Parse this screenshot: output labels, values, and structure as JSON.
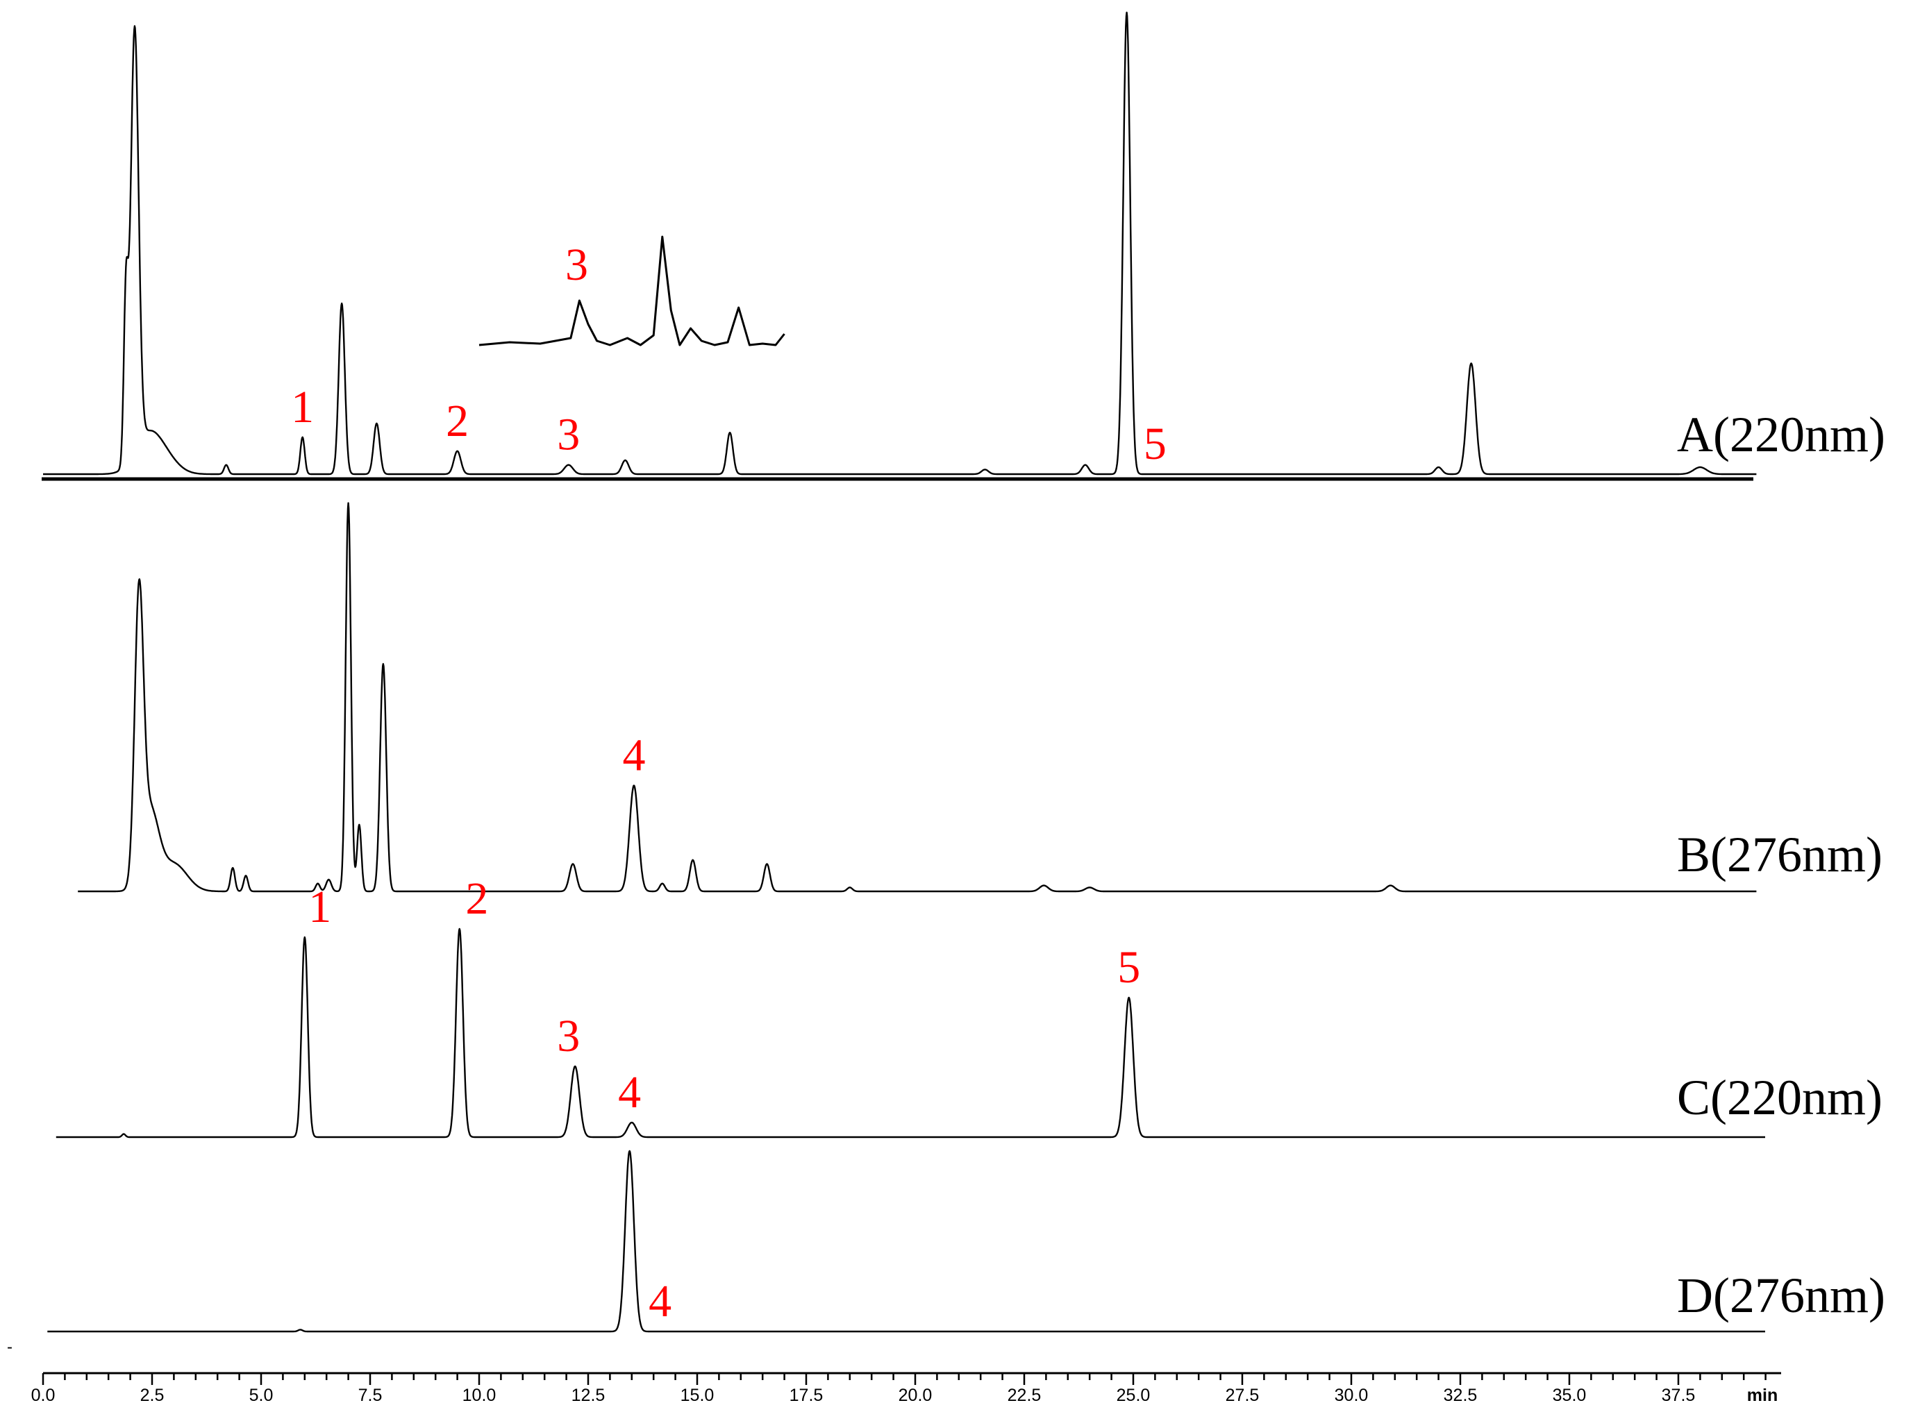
{
  "chart_data": {
    "type": "line",
    "title": "",
    "xlabel": "",
    "ylabel": "",
    "x_unit": "min",
    "xlim": [
      0,
      39.5
    ],
    "x_ticks": [
      "0.0",
      "2.5",
      "5.0",
      "7.5",
      "10.0",
      "12.5",
      "15.0",
      "17.5",
      "20.0",
      "22.5",
      "25.0",
      "27.5",
      "30.0",
      "32.5",
      "35.0",
      "37.5"
    ],
    "peak_label_color": "#ff0000",
    "trace_color": "#000000",
    "grid": false,
    "series": [
      {
        "name": "A(220nm)",
        "t_start": 0,
        "t_end": 39.3,
        "peaks": [
          {
            "t": 1.9,
            "h": 0.35,
            "w": 0.05
          },
          {
            "t": 2.1,
            "h": 0.92,
            "w": 0.09
          },
          {
            "t": 2.4,
            "h": 0.08,
            "w": 0.3
          },
          {
            "t": 2.8,
            "h": 0.03,
            "w": 0.3
          },
          {
            "t": 4.2,
            "h": 0.02,
            "w": 0.05
          },
          {
            "t": 5.95,
            "h": 0.08,
            "w": 0.05
          },
          {
            "t": 6.85,
            "h": 0.37,
            "w": 0.07
          },
          {
            "t": 7.65,
            "h": 0.11,
            "w": 0.07
          },
          {
            "t": 9.5,
            "h": 0.05,
            "w": 0.08
          },
          {
            "t": 12.05,
            "h": 0.02,
            "w": 0.1
          },
          {
            "t": 13.35,
            "h": 0.03,
            "w": 0.08
          },
          {
            "t": 15.75,
            "h": 0.09,
            "w": 0.07
          },
          {
            "t": 21.6,
            "h": 0.01,
            "w": 0.08
          },
          {
            "t": 23.9,
            "h": 0.02,
            "w": 0.08
          },
          {
            "t": 24.85,
            "h": 1.0,
            "w": 0.08
          },
          {
            "t": 32.0,
            "h": 0.015,
            "w": 0.08
          },
          {
            "t": 32.75,
            "h": 0.24,
            "w": 0.1
          },
          {
            "t": 38.0,
            "h": 0.015,
            "w": 0.15
          }
        ],
        "peak_labels": [
          {
            "text": "1",
            "t": 5.95
          },
          {
            "text": "2",
            "t": 9.5
          },
          {
            "text": "3",
            "t": 12.05
          },
          {
            "text": "5",
            "t": 25.5
          }
        ],
        "inset": {
          "x": [
            10.0,
            10.7,
            11.4,
            12.1,
            12.3,
            12.5,
            12.7,
            13.0,
            13.4,
            13.7,
            14.0,
            14.2,
            14.4,
            14.6,
            14.85,
            15.1,
            15.4,
            15.7,
            15.95,
            16.2,
            16.5,
            16.8,
            17.0
          ],
          "y": [
            0.0,
            0.02,
            0.01,
            0.05,
            0.32,
            0.15,
            0.03,
            0.0,
            0.05,
            0.0,
            0.07,
            0.78,
            0.25,
            0.0,
            0.12,
            0.03,
            0.0,
            0.02,
            0.27,
            0.0,
            0.01,
            0.0,
            0.08
          ],
          "label": "3"
        }
      },
      {
        "name": "B(276nm)",
        "t_start": 0.8,
        "t_end": 39.3,
        "peaks": [
          {
            "t": 2.2,
            "h": 0.7,
            "w": 0.1
          },
          {
            "t": 2.45,
            "h": 0.2,
            "w": 0.2
          },
          {
            "t": 3.0,
            "h": 0.07,
            "w": 0.3
          },
          {
            "t": 4.35,
            "h": 0.06,
            "w": 0.05
          },
          {
            "t": 4.65,
            "h": 0.04,
            "w": 0.05
          },
          {
            "t": 6.3,
            "h": 0.02,
            "w": 0.05
          },
          {
            "t": 6.55,
            "h": 0.03,
            "w": 0.06
          },
          {
            "t": 7.0,
            "h": 0.99,
            "w": 0.06
          },
          {
            "t": 7.25,
            "h": 0.17,
            "w": 0.05
          },
          {
            "t": 7.8,
            "h": 0.58,
            "w": 0.07
          },
          {
            "t": 12.15,
            "h": 0.07,
            "w": 0.08
          },
          {
            "t": 13.55,
            "h": 0.27,
            "w": 0.1
          },
          {
            "t": 14.2,
            "h": 0.02,
            "w": 0.06
          },
          {
            "t": 14.9,
            "h": 0.08,
            "w": 0.07
          },
          {
            "t": 16.6,
            "h": 0.07,
            "w": 0.07
          },
          {
            "t": 18.5,
            "h": 0.01,
            "w": 0.06
          },
          {
            "t": 22.95,
            "h": 0.015,
            "w": 0.1
          },
          {
            "t": 24.0,
            "h": 0.01,
            "w": 0.1
          },
          {
            "t": 30.9,
            "h": 0.015,
            "w": 0.1
          }
        ],
        "peak_labels": [
          {
            "text": "4",
            "t": 13.55
          }
        ]
      },
      {
        "name": "C(220nm)",
        "t_start": 0.3,
        "t_end": 39.5,
        "peaks": [
          {
            "t": 1.85,
            "h": 0.015,
            "w": 0.04
          },
          {
            "t": 6.0,
            "h": 0.96,
            "w": 0.07
          },
          {
            "t": 9.55,
            "h": 1.0,
            "w": 0.08
          },
          {
            "t": 12.2,
            "h": 0.34,
            "w": 0.1
          },
          {
            "t": 13.5,
            "h": 0.07,
            "w": 0.1
          },
          {
            "t": 24.9,
            "h": 0.67,
            "w": 0.1
          }
        ],
        "peak_labels": [
          {
            "text": "1",
            "t": 6.35
          },
          {
            "text": "2",
            "t": 9.95
          },
          {
            "text": "3",
            "t": 12.05
          },
          {
            "text": "4",
            "t": 13.45
          },
          {
            "text": "5",
            "t": 24.9
          }
        ]
      },
      {
        "name": "D(276nm)",
        "t_start": 0.1,
        "t_end": 39.5,
        "peaks": [
          {
            "t": 5.9,
            "h": 0.01,
            "w": 0.05
          },
          {
            "t": 13.45,
            "h": 1.0,
            "w": 0.1
          }
        ],
        "peak_labels": [
          {
            "text": "4",
            "t": 14.15
          }
        ]
      }
    ]
  }
}
